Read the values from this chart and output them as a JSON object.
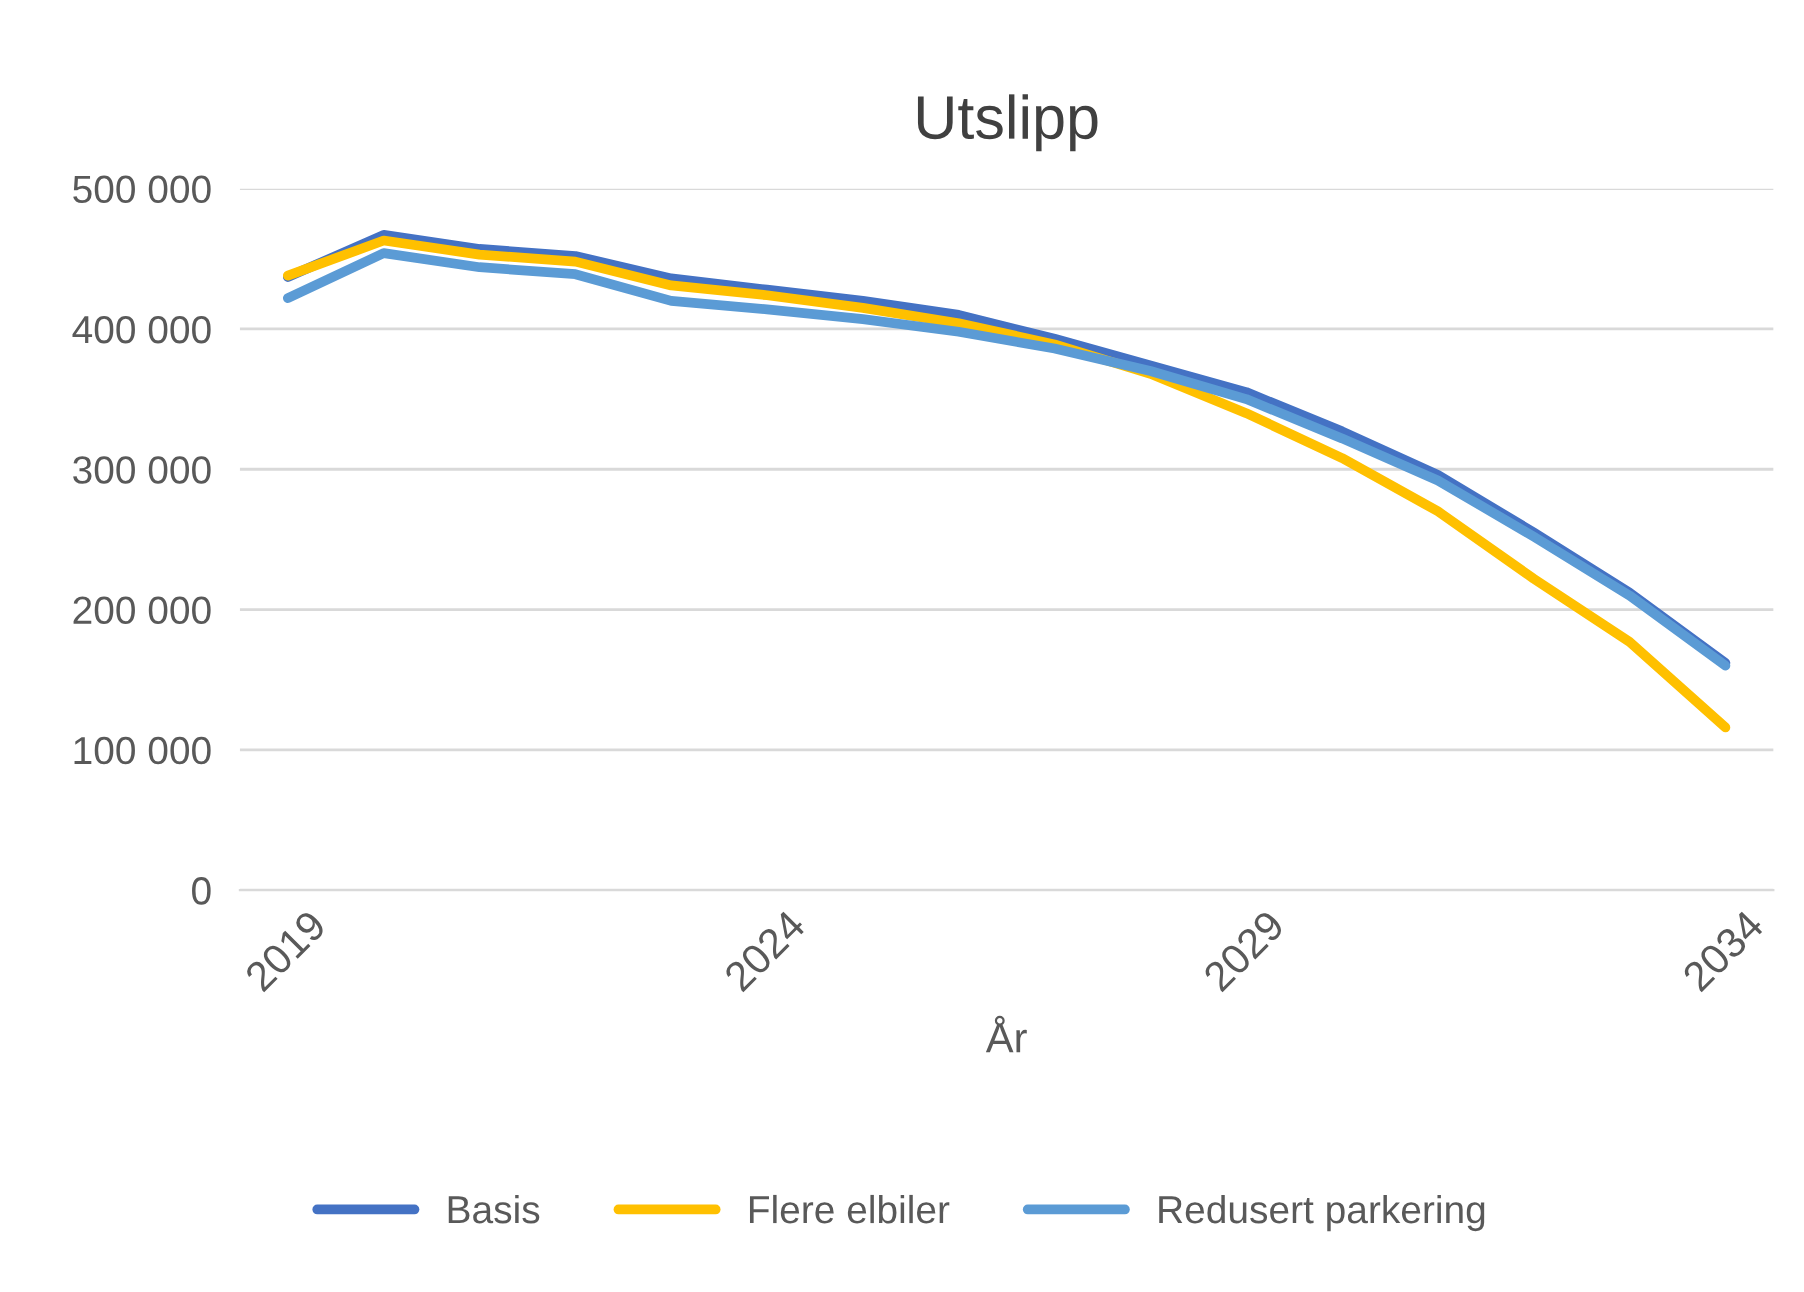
{
  "chart_data": {
    "type": "line",
    "title": "Utslipp",
    "xlabel": "År",
    "categories": [
      "2019",
      null,
      null,
      null,
      null,
      "2024",
      null,
      null,
      null,
      null,
      "2029",
      null,
      null,
      null,
      null,
      "2034"
    ],
    "series": [
      {
        "name": "Basis",
        "color": "#4472c4",
        "values": [
          437000,
          467000,
          457000,
          452000,
          436000,
          428000,
          420000,
          410000,
          393000,
          374000,
          355000,
          327000,
          296000,
          255000,
          212000,
          162000
        ]
      },
      {
        "name": "Flere elbiler",
        "color": "#ffc000",
        "values": [
          438000,
          463000,
          453000,
          448000,
          431000,
          424000,
          415000,
          404000,
          389000,
          368000,
          340000,
          308000,
          270000,
          222000,
          177000,
          116000
        ]
      },
      {
        "name": "Redusert parkering",
        "color": "#5b9bd5",
        "values": [
          422000,
          454000,
          444000,
          439000,
          420000,
          414000,
          407000,
          398000,
          386000,
          370000,
          350000,
          322000,
          292000,
          252000,
          210000,
          160000
        ]
      }
    ],
    "ylim": [
      0,
      500000
    ],
    "yticks": [
      0,
      {
        "value": 100000,
        "label": "100 000"
      },
      {
        "value": 200000,
        "label": "200 000"
      },
      {
        "value": 300000,
        "label": "300 000"
      },
      {
        "value": 400000,
        "label": "400 000"
      },
      {
        "value": 500000,
        "label": "500 000"
      }
    ],
    "grid": "y",
    "legend": "bottom",
    "marker": "none",
    "line_style": "solid"
  }
}
